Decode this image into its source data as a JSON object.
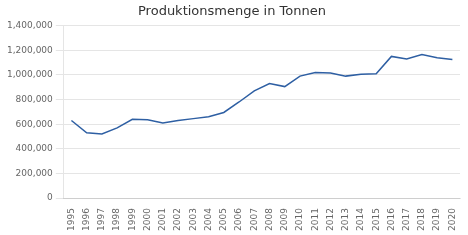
{
  "chart_data": {
    "type": "line",
    "title": "Produktionsmenge in Tonnen",
    "x": [
      1995,
      1996,
      1997,
      1998,
      1999,
      2000,
      2001,
      2002,
      2003,
      2004,
      2005,
      2006,
      2007,
      2008,
      2009,
      2010,
      2011,
      2012,
      2013,
      2014,
      2015,
      2016,
      2017,
      2018,
      2019,
      2020
    ],
    "values": [
      630000,
      530000,
      520000,
      570000,
      640000,
      635000,
      610000,
      630000,
      645000,
      660000,
      695000,
      780000,
      870000,
      930000,
      905000,
      990000,
      1020000,
      1015000,
      990000,
      1005000,
      1010000,
      1150000,
      1130000,
      1165000,
      1140000,
      1125000
    ],
    "color": "#2E5FA3",
    "xlim": [
      1994.5,
      2020.5
    ],
    "xticks": [
      1995,
      1996,
      1997,
      1998,
      1999,
      2000,
      2001,
      2002,
      2003,
      2004,
      2005,
      2006,
      2007,
      2008,
      2009,
      2010,
      2011,
      2012,
      2013,
      2014,
      2015,
      2016,
      2017,
      2018,
      2019,
      2020
    ],
    "ylim": [
      0,
      1400000
    ],
    "yticks": [
      0,
      {
        "value": 200000,
        "label": "200,000"
      },
      {
        "value": 400000,
        "label": "400,000"
      },
      {
        "value": 600000,
        "label": "600,000"
      },
      {
        "value": 800000,
        "label": "800,000"
      },
      {
        "value": 1000000,
        "label": "1,000,000"
      },
      {
        "value": 1200000,
        "label": "1,200,000"
      },
      {
        "value": 1400000,
        "label": "1,400,000"
      }
    ],
    "grid": "y"
  }
}
